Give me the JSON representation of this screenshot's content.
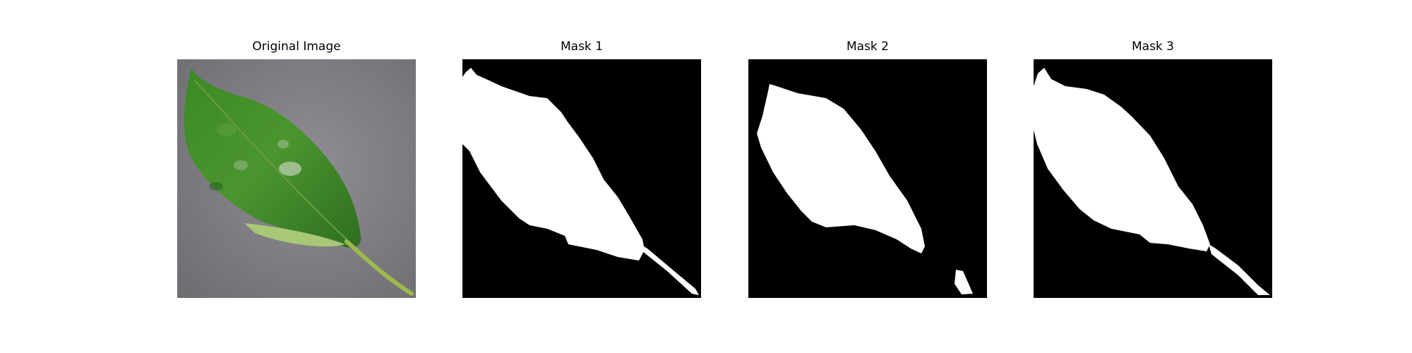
{
  "figure": {
    "panels": [
      {
        "title": "Original Image",
        "kind": "photo",
        "subject": "leaf-photo"
      },
      {
        "title": "Mask 1",
        "kind": "binary-mask"
      },
      {
        "title": "Mask 2",
        "kind": "binary-mask"
      },
      {
        "title": "Mask 3",
        "kind": "binary-mask"
      }
    ],
    "colors": {
      "background": "#ffffff",
      "photo_surface": "#86848a",
      "leaf_green": "#3f8a2a",
      "leaf_dark": "#2c6b1f",
      "leaf_light": "#a8c878",
      "mask_background": "#000000",
      "mask_foreground": "#ffffff"
    }
  }
}
